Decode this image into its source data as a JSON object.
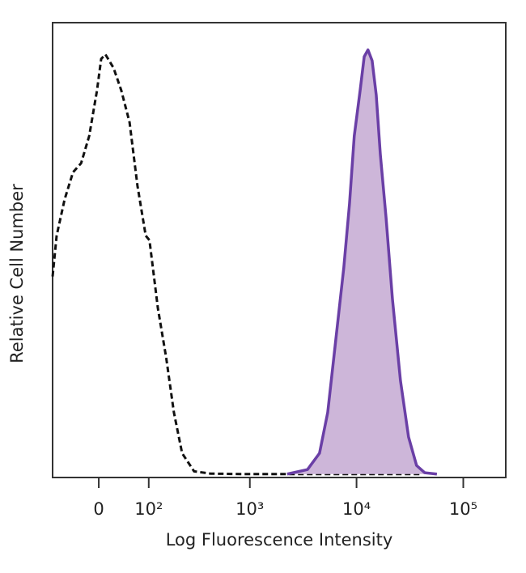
{
  "chart_data": {
    "type": "histogram-overlay",
    "x_label": "Log Fluorescence Intensity",
    "y_label": "Relative Cell Number",
    "xscale": "arcsinh",
    "xlim": [
      -90,
      250000
    ],
    "ylim": [
      0,
      100
    ],
    "xticks": [
      0,
      {
        "value": 100,
        "label": "10²"
      },
      {
        "value": 1000,
        "label": "10³"
      },
      {
        "value": 10000,
        "label": "10⁴"
      },
      {
        "value": 100000,
        "label": "10⁵"
      }
    ],
    "series": [
      {
        "color": "#111111",
        "style": "dashed",
        "x": [
          -90,
          -80,
          -62,
          -45,
          -30,
          -16,
          -3,
          4,
          11,
          25,
          39,
          55,
          72,
          92,
          102,
          127,
          156,
          187,
          226,
          296,
          424,
          857,
          2440,
          6960,
          19800,
          39800
        ],
        "values": [
          44,
          53,
          61,
          67,
          69,
          75,
          85,
          92,
          93,
          90,
          85,
          78,
          64,
          53,
          52,
          37,
          26,
          14,
          5,
          1,
          0.5,
          0.4,
          0.4,
          0.4,
          0.4,
          0.4
        ]
      },
      {
        "color": "#6a3fa6",
        "fill": "#cdb6d9",
        "style": "solid",
        "x": [
          2240,
          3470,
          4500,
          5370,
          6390,
          7600,
          8590,
          9520,
          10800,
          11800,
          12800,
          14000,
          15300,
          16700,
          18900,
          21700,
          25800,
          30700,
          36500,
          43500,
          56600
        ],
        "values": [
          0.4,
          1.4,
          5,
          14,
          30,
          46,
          60,
          75,
          85,
          92.5,
          94,
          91.6,
          84,
          71,
          57,
          39,
          21,
          8.6,
          2.3,
          0.7,
          0.4
        ]
      }
    ]
  }
}
